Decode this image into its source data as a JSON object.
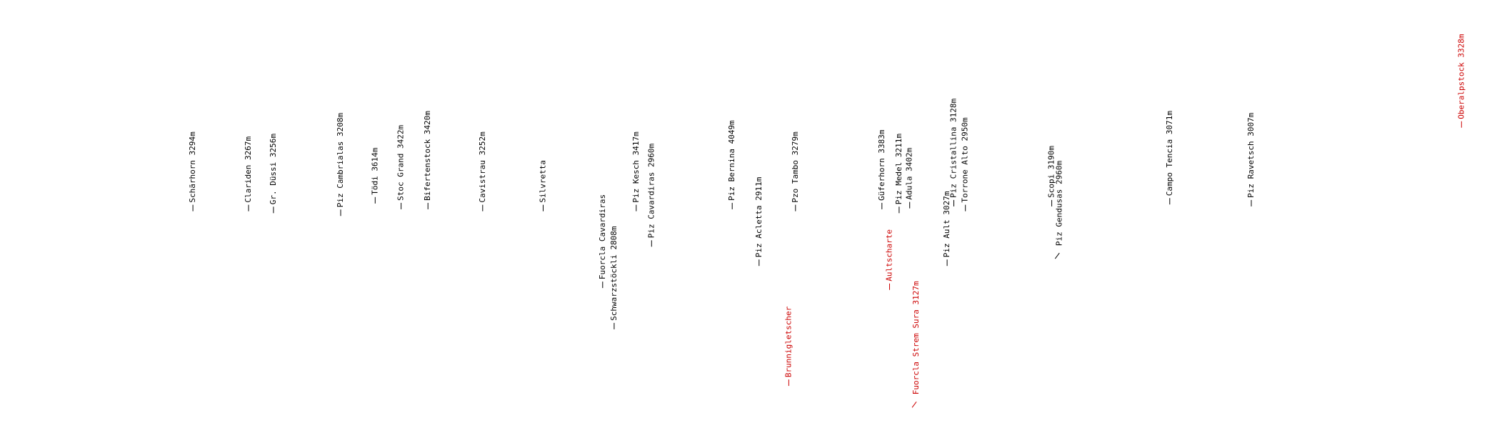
{
  "labels": [
    {
      "text": "Schärhorn 3294m",
      "color": "#000000"
    },
    {
      "text": "Clariden 3267m",
      "color": "#000000"
    },
    {
      "text": "Gr. Düssi 3256m",
      "color": "#000000"
    },
    {
      "text": "Piz Cambrialas 3208m",
      "color": "#000000"
    },
    {
      "text": "Tödi 3614m",
      "color": "#000000"
    },
    {
      "text": "Stoc Grand 3422m",
      "color": "#000000"
    },
    {
      "text": "Bifertenstock 3420m",
      "color": "#000000"
    },
    {
      "text": "Cavistrau 3252m",
      "color": "#000000"
    },
    {
      "text": "Silvretta",
      "color": "#000000"
    },
    {
      "text": "Fuorcla Cavardiras",
      "color": "#000000"
    },
    {
      "text": "Schwarzstöckli 2808m",
      "color": "#000000"
    },
    {
      "text": "Piz Kesch 3417m",
      "color": "#000000"
    },
    {
      "text": "Piz Cavardiras 2960m",
      "color": "#000000"
    },
    {
      "text": "Piz Bernina 4049m",
      "color": "#000000"
    },
    {
      "text": "Piz Acletta 2911m",
      "color": "#000000"
    },
    {
      "text": "Pzo Tambo 3279m",
      "color": "#000000"
    },
    {
      "text": "Brunnigletscher",
      "color": "#cc0000"
    },
    {
      "text": "Güferhorn 3383m",
      "color": "#000000"
    },
    {
      "text": "Aultscharte",
      "color": "#cc0000"
    },
    {
      "text": "Piz Medel 3211m",
      "color": "#000000"
    },
    {
      "text": "Adula 3402m",
      "color": "#000000"
    },
    {
      "text": "Fuorcla Strem Sura 3127m",
      "color": "#cc0000"
    },
    {
      "text": "Piz Ault 3027m",
      "color": "#000000"
    },
    {
      "text": "Piz Cristallina 3128m",
      "color": "#000000"
    },
    {
      "text": "Torrone Alto 2950m",
      "color": "#000000"
    },
    {
      "text": "Scopi 3190m",
      "color": "#000000"
    },
    {
      "text": "Piz Gendusas 2960m",
      "color": "#000000"
    },
    {
      "text": "Campo Tencia 3071m",
      "color": "#000000"
    },
    {
      "text": "Piz Ravetsch 3007m",
      "color": "#000000"
    },
    {
      "text": "Oberalpstock 3328m",
      "color": "#cc0000"
    }
  ]
}
